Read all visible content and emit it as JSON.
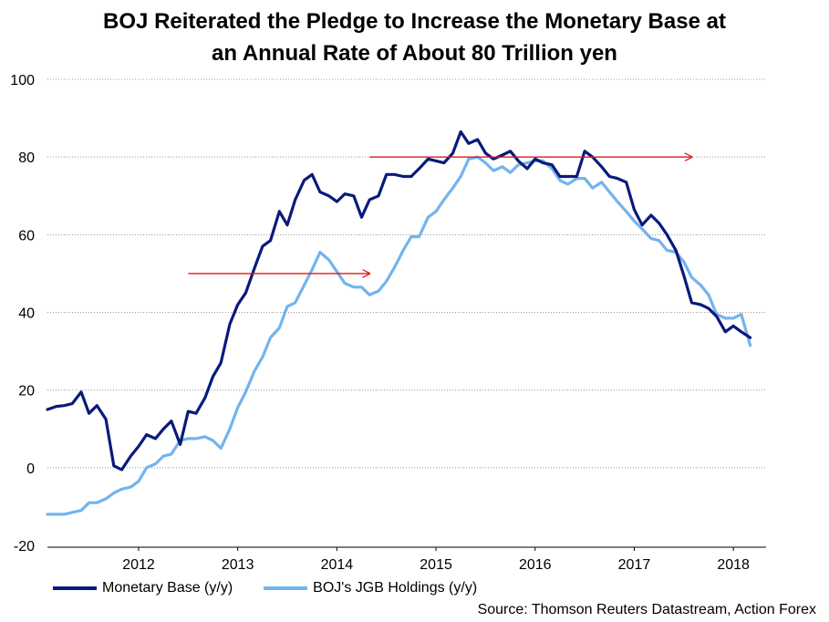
{
  "chart_data": {
    "type": "line",
    "title_line1": "BOJ Reiterated the Pledge to Increase the Monetary Base at",
    "title_line2": "an Annual Rate of About 80 Trillion yen",
    "xlabel": "",
    "ylabel": "",
    "ylim": [
      -20,
      100
    ],
    "xlim": [
      2011.08,
      2018.33
    ],
    "yticks": [
      "100",
      "80",
      "60",
      "40",
      "20",
      "0",
      "-20"
    ],
    "ytick_values": [
      100,
      80,
      60,
      40,
      20,
      0,
      -20
    ],
    "xticks": [
      "2012",
      "2013",
      "2014",
      "2015",
      "2016",
      "2017",
      "2018"
    ],
    "xtick_values": [
      2012,
      2013,
      2014,
      2015,
      2016,
      2017,
      2018
    ],
    "grid": true,
    "legend_position": "bottom-left",
    "series": [
      {
        "name": "Monetary Base (y/y)",
        "color": "#0a1a7a",
        "points": [
          [
            2011.08,
            15
          ],
          [
            2011.17,
            15.8
          ],
          [
            2011.25,
            16
          ],
          [
            2011.33,
            16.5
          ],
          [
            2011.42,
            19.5
          ],
          [
            2011.5,
            14
          ],
          [
            2011.58,
            16
          ],
          [
            2011.67,
            12.5
          ],
          [
            2011.75,
            0.5
          ],
          [
            2011.83,
            -0.5
          ],
          [
            2011.92,
            3
          ],
          [
            2012.0,
            5.5
          ],
          [
            2012.08,
            8.5
          ],
          [
            2012.17,
            7.5
          ],
          [
            2012.25,
            10
          ],
          [
            2012.33,
            12
          ],
          [
            2012.42,
            6
          ],
          [
            2012.5,
            14.5
          ],
          [
            2012.58,
            14
          ],
          [
            2012.67,
            18
          ],
          [
            2012.75,
            23.5
          ],
          [
            2012.83,
            27
          ],
          [
            2012.92,
            37
          ],
          [
            2013.0,
            42
          ],
          [
            2013.08,
            45
          ],
          [
            2013.17,
            51.5
          ],
          [
            2013.25,
            57
          ],
          [
            2013.33,
            58.5
          ],
          [
            2013.42,
            66
          ],
          [
            2013.5,
            62.5
          ],
          [
            2013.58,
            69
          ],
          [
            2013.67,
            74
          ],
          [
            2013.75,
            75.5
          ],
          [
            2013.83,
            71
          ],
          [
            2013.92,
            70
          ],
          [
            2014.0,
            68.5
          ],
          [
            2014.08,
            70.5
          ],
          [
            2014.17,
            70
          ],
          [
            2014.25,
            64.5
          ],
          [
            2014.33,
            69
          ],
          [
            2014.42,
            70
          ],
          [
            2014.5,
            75.5
          ],
          [
            2014.58,
            75.5
          ],
          [
            2014.67,
            75
          ],
          [
            2014.75,
            75
          ],
          [
            2014.83,
            77
          ],
          [
            2014.92,
            79.5
          ],
          [
            2015.0,
            79
          ],
          [
            2015.08,
            78.5
          ],
          [
            2015.17,
            81
          ],
          [
            2015.25,
            86.5
          ],
          [
            2015.33,
            83.5
          ],
          [
            2015.42,
            84.5
          ],
          [
            2015.5,
            81
          ],
          [
            2015.58,
            79.5
          ],
          [
            2015.67,
            80.5
          ],
          [
            2015.75,
            81.5
          ],
          [
            2015.83,
            79
          ],
          [
            2015.92,
            77
          ],
          [
            2016.0,
            79.5
          ],
          [
            2016.08,
            78.5
          ],
          [
            2016.17,
            78
          ],
          [
            2016.25,
            75
          ],
          [
            2016.33,
            75
          ],
          [
            2016.42,
            75
          ],
          [
            2016.5,
            81.5
          ],
          [
            2016.58,
            80
          ],
          [
            2016.67,
            77.5
          ],
          [
            2016.75,
            75
          ],
          [
            2016.83,
            74.5
          ],
          [
            2016.92,
            73.5
          ],
          [
            2017.0,
            66.5
          ],
          [
            2017.08,
            62.5
          ],
          [
            2017.17,
            65
          ],
          [
            2017.25,
            63
          ],
          [
            2017.33,
            60
          ],
          [
            2017.42,
            56
          ],
          [
            2017.5,
            49.5
          ],
          [
            2017.58,
            42.5
          ],
          [
            2017.67,
            42
          ],
          [
            2017.75,
            41
          ],
          [
            2017.83,
            39
          ],
          [
            2017.92,
            35
          ],
          [
            2018.0,
            36.5
          ],
          [
            2018.08,
            35
          ],
          [
            2018.17,
            33.5
          ]
        ]
      },
      {
        "name": "BOJ's JGB Holdings (y/y)",
        "color": "#72b4ee",
        "points": [
          [
            2011.08,
            -12
          ],
          [
            2011.17,
            -12
          ],
          [
            2011.25,
            -12
          ],
          [
            2011.33,
            -11.5
          ],
          [
            2011.42,
            -11
          ],
          [
            2011.5,
            -9
          ],
          [
            2011.58,
            -9
          ],
          [
            2011.67,
            -8
          ],
          [
            2011.75,
            -6.5
          ],
          [
            2011.83,
            -5.5
          ],
          [
            2011.92,
            -5
          ],
          [
            2012.0,
            -3.5
          ],
          [
            2012.08,
            0
          ],
          [
            2012.17,
            1
          ],
          [
            2012.25,
            3
          ],
          [
            2012.33,
            3.5
          ],
          [
            2012.42,
            7
          ],
          [
            2012.5,
            7.5
          ],
          [
            2012.58,
            7.5
          ],
          [
            2012.67,
            8
          ],
          [
            2012.75,
            7
          ],
          [
            2012.83,
            5
          ],
          [
            2012.92,
            10
          ],
          [
            2013.0,
            15.5
          ],
          [
            2013.08,
            19.5
          ],
          [
            2013.17,
            25
          ],
          [
            2013.25,
            28.5
          ],
          [
            2013.33,
            33.5
          ],
          [
            2013.42,
            36
          ],
          [
            2013.5,
            41.5
          ],
          [
            2013.58,
            42.5
          ],
          [
            2013.67,
            47
          ],
          [
            2013.75,
            51
          ],
          [
            2013.83,
            55.5
          ],
          [
            2013.92,
            53.5
          ],
          [
            2014.0,
            50.5
          ],
          [
            2014.08,
            47.5
          ],
          [
            2014.17,
            46.5
          ],
          [
            2014.25,
            46.5
          ],
          [
            2014.33,
            44.5
          ],
          [
            2014.42,
            45.5
          ],
          [
            2014.5,
            48
          ],
          [
            2014.58,
            51.5
          ],
          [
            2014.67,
            56
          ],
          [
            2014.75,
            59.5
          ],
          [
            2014.83,
            59.5
          ],
          [
            2014.92,
            64.5
          ],
          [
            2015.0,
            66
          ],
          [
            2015.08,
            69
          ],
          [
            2015.17,
            72
          ],
          [
            2015.25,
            75
          ],
          [
            2015.33,
            79.5
          ],
          [
            2015.42,
            80
          ],
          [
            2015.5,
            78.5
          ],
          [
            2015.58,
            76.5
          ],
          [
            2015.67,
            77.5
          ],
          [
            2015.75,
            76
          ],
          [
            2015.83,
            78
          ],
          [
            2015.92,
            78.5
          ],
          [
            2016.0,
            79
          ],
          [
            2016.08,
            79
          ],
          [
            2016.17,
            77
          ],
          [
            2016.25,
            74
          ],
          [
            2016.33,
            73
          ],
          [
            2016.42,
            74.5
          ],
          [
            2016.5,
            74.5
          ],
          [
            2016.58,
            72
          ],
          [
            2016.67,
            73.5
          ],
          [
            2016.75,
            71
          ],
          [
            2016.83,
            68.5
          ],
          [
            2016.92,
            66
          ],
          [
            2017.0,
            63.5
          ],
          [
            2017.08,
            61.5
          ],
          [
            2017.17,
            59
          ],
          [
            2017.25,
            58.5
          ],
          [
            2017.33,
            56
          ],
          [
            2017.42,
            55.5
          ],
          [
            2017.5,
            53
          ],
          [
            2017.58,
            49
          ],
          [
            2017.67,
            47
          ],
          [
            2017.75,
            44.5
          ],
          [
            2017.83,
            39.5
          ],
          [
            2017.92,
            38.5
          ],
          [
            2018.0,
            38.5
          ],
          [
            2018.08,
            39.5
          ],
          [
            2018.17,
            31.5
          ]
        ]
      }
    ],
    "annotations": [
      {
        "type": "arrow",
        "color": "#e8141b",
        "x_start": 2012.5,
        "x_end": 2014.33,
        "y": 50
      },
      {
        "type": "arrow",
        "color": "#e8141b",
        "x_start": 2014.33,
        "x_end": 2017.58,
        "y": 80
      }
    ]
  },
  "source": "Source: Thomson Reuters Datastream, Action Forex"
}
